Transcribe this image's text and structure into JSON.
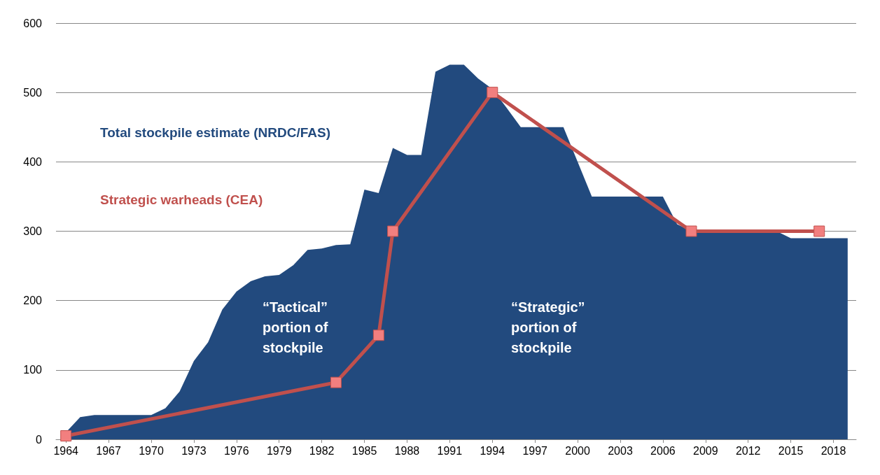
{
  "chart_data": {
    "type": "area",
    "xlim": [
      1963.3,
      2019.6
    ],
    "xticks": [
      1964,
      1967,
      1970,
      1973,
      1976,
      1979,
      1982,
      1985,
      1988,
      1991,
      1994,
      1997,
      2000,
      2003,
      2006,
      2009,
      2012,
      2015,
      2018
    ],
    "ylim": [
      0,
      600
    ],
    "yticks": [
      0,
      100,
      200,
      300,
      400,
      500,
      600
    ],
    "grid": "y",
    "legend": false,
    "annotations": [
      "“Tactical” portion of stockpile",
      "“Strategic” portion of stockpile"
    ],
    "series": [
      {
        "name": "Total stockpile estimate (NRDC/FAS)",
        "color": "#224a7e",
        "x": [
          1964,
          1965,
          1966,
          1967,
          1968,
          1969,
          1970,
          1971,
          1972,
          1973,
          1974,
          1975,
          1976,
          1977,
          1978,
          1979,
          1980,
          1981,
          1982,
          1983,
          1984,
          1985,
          1986,
          1987,
          1988,
          1989,
          1990,
          1991,
          1992,
          1993,
          1994,
          1995,
          1996,
          1997,
          1998,
          1999,
          2000,
          2001,
          2002,
          2003,
          2004,
          2005,
          2006,
          2007,
          2008,
          2009,
          2010,
          2011,
          2012,
          2013,
          2014,
          2015,
          2016,
          2017,
          2018,
          2019
        ],
        "values": [
          10,
          32,
          35,
          35,
          35,
          35,
          35,
          45,
          69,
          113,
          140,
          187,
          213,
          228,
          235,
          237,
          251,
          273,
          275,
          280,
          281,
          360,
          355,
          420,
          410,
          410,
          530,
          540,
          540,
          520,
          505,
          478,
          450,
          450,
          450,
          450,
          400,
          350,
          350,
          350,
          350,
          350,
          350,
          310,
          300,
          300,
          300,
          300,
          300,
          300,
          300,
          290,
          290,
          290,
          290,
          290
        ]
      },
      {
        "name": "Strategic warheads (CEA)",
        "color": "#c0504d",
        "type": "line",
        "marker": "square",
        "x": [
          1964,
          1983,
          1986,
          1987,
          1994,
          2008,
          2017
        ],
        "values": [
          5,
          82,
          150,
          300,
          500,
          300,
          300
        ]
      }
    ]
  }
}
